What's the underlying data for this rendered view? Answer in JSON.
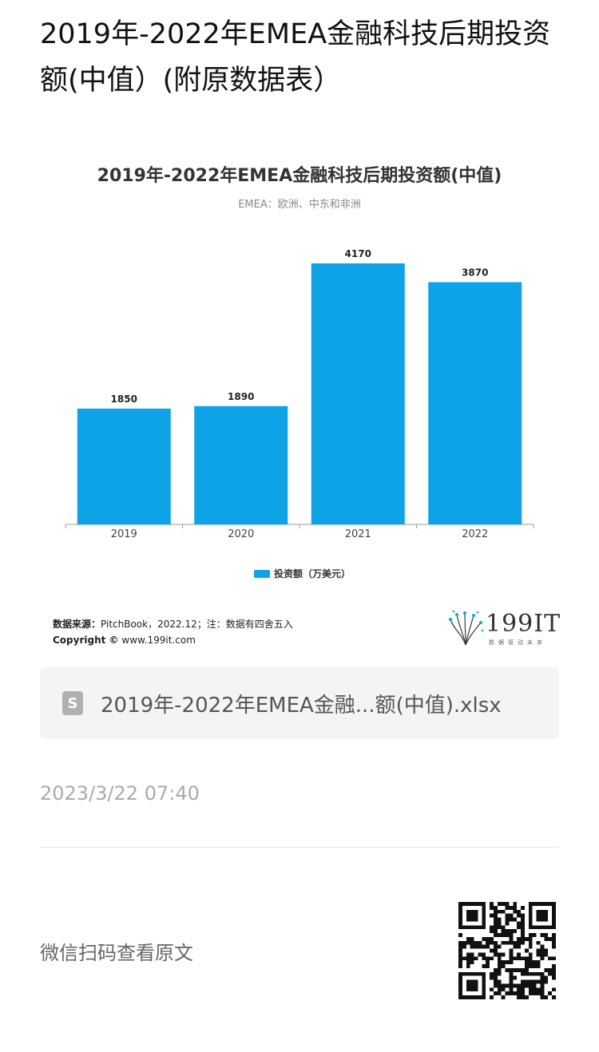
{
  "page": {
    "title": "2019年-2022年EMEA金融科技后期投资额(中值）(附原数据表）"
  },
  "chart_data": {
    "type": "bar",
    "title": "2019年-2022年EMEA金融科技后期投资额(中值)",
    "subtitle": "EMEA：欧洲、中东和非洲",
    "categories": [
      "2019",
      "2020",
      "2021",
      "2022"
    ],
    "series": [
      {
        "name": "投资额（万美元）",
        "values": [
          1850,
          1890,
          4170,
          3870
        ]
      }
    ],
    "ylim": [
      0,
      4170
    ],
    "bar_color": "#0ea3e6",
    "legend_position": "bottom"
  },
  "source": {
    "label": "数据来源：",
    "text": "PitchBook，2022.12；注：数据有四舍五入",
    "copyright_label": "Copyright ©",
    "copyright_site": "www.199it.com"
  },
  "logo": {
    "text": "199IT",
    "sub": "数据驱动未来"
  },
  "attachment": {
    "icon_glyph": "S",
    "filename": "2019年-2022年EMEA金融...额(中值).xlsx"
  },
  "timestamp": "2023/3/22 07:40",
  "footer": {
    "scan_label": "微信扫码查看原文"
  }
}
